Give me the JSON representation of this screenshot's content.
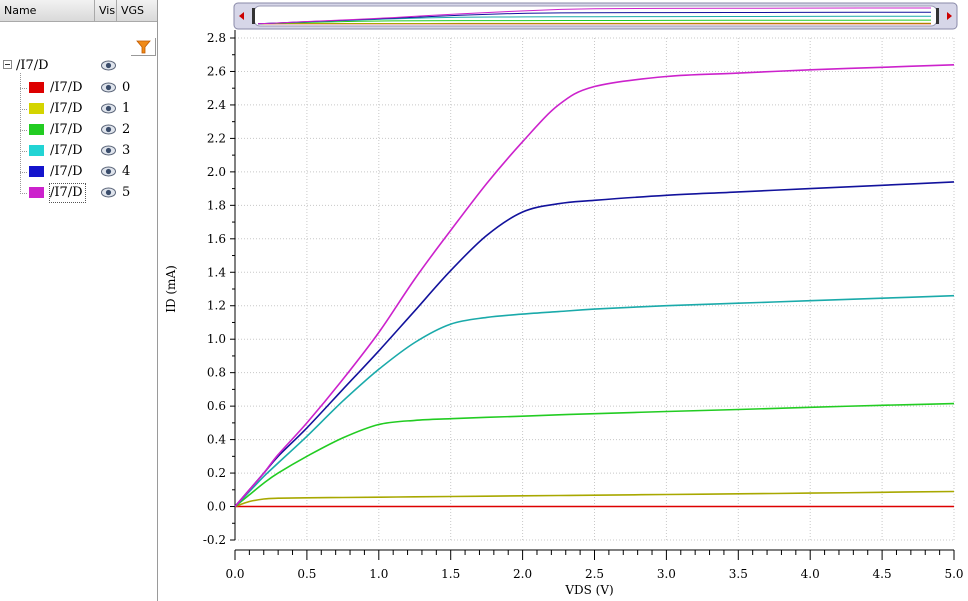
{
  "browser": {
    "columns": [
      "Name",
      "Vis",
      "VGS"
    ],
    "root_label": "/I7/D",
    "signals": [
      {
        "label": "/I7/D",
        "vgs": "0",
        "color": "#dd0000"
      },
      {
        "label": "/I7/D",
        "vgs": "1",
        "color": "#d4d400"
      },
      {
        "label": "/I7/D",
        "vgs": "2",
        "color": "#22cc22"
      },
      {
        "label": "/I7/D",
        "vgs": "3",
        "color": "#22d4d4"
      },
      {
        "label": "/I7/D",
        "vgs": "4",
        "color": "#1414cc"
      },
      {
        "label": "/I7/D",
        "vgs": "5",
        "color": "#cc22cc"
      }
    ],
    "icons": {
      "filter": "filter-icon",
      "visibility": "eye-icon",
      "expander": "tree-collapse-icon"
    }
  },
  "colors": {
    "grid": "#c8c8c8",
    "overview_bg": "#d6d6e8",
    "scroll_arrow": "#cc0000"
  },
  "chart_data": {
    "type": "line",
    "xlabel": "VDS (V)",
    "ylabel": "ID (mA)",
    "xlim": [
      0,
      5
    ],
    "ylim": [
      -0.2,
      2.8
    ],
    "xticks": [
      "0.0",
      "0.5",
      "1.0",
      "1.5",
      "2.0",
      "2.5",
      "3.0",
      "3.5",
      "4.0",
      "4.5",
      "5.0"
    ],
    "yticks": [
      "-0.2",
      "0.0",
      "0.2",
      "0.4",
      "0.6",
      "0.8",
      "1.0",
      "1.2",
      "1.4",
      "1.6",
      "1.8",
      "2.0",
      "2.2",
      "2.4",
      "2.6",
      "2.8"
    ],
    "grid": true,
    "x": [
      0.0,
      0.1,
      0.2,
      0.3,
      0.5,
      0.75,
      1.0,
      1.25,
      1.5,
      1.75,
      2.0,
      2.25,
      2.5,
      3.0,
      3.5,
      4.0,
      4.5,
      5.0
    ],
    "series": [
      {
        "name": "0",
        "color": "#dd0000",
        "values": [
          0,
          0,
          0,
          0,
          0,
          0,
          0,
          0,
          0,
          0,
          0,
          0,
          0,
          0,
          0,
          0,
          0,
          0
        ]
      },
      {
        "name": "1",
        "color": "#a8a800",
        "values": [
          0.0,
          0.03,
          0.045,
          0.05,
          0.052,
          0.054,
          0.056,
          0.058,
          0.06,
          0.062,
          0.064,
          0.066,
          0.068,
          0.072,
          0.076,
          0.08,
          0.085,
          0.09
        ]
      },
      {
        "name": "2",
        "color": "#22cc22",
        "values": [
          0.0,
          0.07,
          0.14,
          0.2,
          0.3,
          0.41,
          0.49,
          0.515,
          0.525,
          0.533,
          0.54,
          0.548,
          0.555,
          0.568,
          0.58,
          0.593,
          0.605,
          0.615
        ]
      },
      {
        "name": "3",
        "color": "#1aaaaa",
        "values": [
          0.0,
          0.09,
          0.18,
          0.26,
          0.42,
          0.63,
          0.82,
          0.98,
          1.09,
          1.13,
          1.15,
          1.165,
          1.18,
          1.2,
          1.215,
          1.23,
          1.245,
          1.26
        ]
      },
      {
        "name": "4",
        "color": "#12129c",
        "values": [
          0.0,
          0.1,
          0.2,
          0.3,
          0.47,
          0.7,
          0.93,
          1.17,
          1.41,
          1.62,
          1.76,
          1.81,
          1.83,
          1.86,
          1.88,
          1.9,
          1.92,
          1.94
        ]
      },
      {
        "name": "5",
        "color": "#cc22cc",
        "values": [
          0.0,
          0.1,
          0.2,
          0.31,
          0.5,
          0.76,
          1.04,
          1.36,
          1.65,
          1.93,
          2.18,
          2.4,
          2.51,
          2.57,
          2.59,
          2.61,
          2.625,
          2.64
        ]
      }
    ]
  }
}
